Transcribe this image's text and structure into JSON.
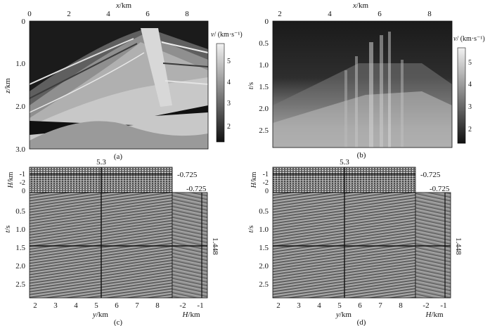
{
  "panel_a": {
    "caption": "(a)",
    "x_label_var": "x",
    "x_label_unit": "/km",
    "y_label_var": "z",
    "y_label_unit": "/km",
    "x_ticks": [
      "0",
      "2",
      "4",
      "6",
      "8"
    ],
    "y_ticks": [
      "0",
      "1.0",
      "2.0",
      "3.0"
    ],
    "colorbar_label_var": "v",
    "colorbar_label_unit": "/ (km·s⁻¹)",
    "colorbar_ticks": [
      "5",
      "4",
      "3",
      "2"
    ]
  },
  "panel_b": {
    "caption": "(b)",
    "x_label_var": "x",
    "x_label_unit": "/km",
    "y_label_var": "t",
    "y_label_unit": "/s",
    "x_ticks": [
      "2",
      "4",
      "6",
      "8"
    ],
    "y_ticks": [
      "0",
      "0.5",
      "1.0",
      "1.5",
      "2.0",
      "2.5"
    ],
    "colorbar_label_var": "v",
    "colorbar_label_unit": "/ (km·s⁻¹)",
    "colorbar_ticks": [
      "5",
      "4",
      "3",
      "2"
    ]
  },
  "panel_c": {
    "caption": "(c)",
    "slice_top_label": "5.3",
    "slice_right_label_top": "-0.725",
    "slice_right_label_lower": "-0.725",
    "slice_time_label": "1.448",
    "h_label_var": "H",
    "h_label_unit": "/km",
    "h_ticks": [
      "-1",
      "-2",
      "0"
    ],
    "t_label_var": "t",
    "t_label_unit": "/s",
    "t_ticks": [
      "0.5",
      "1.0",
      "1.5",
      "2.0",
      "2.5"
    ],
    "y_label_var": "y",
    "y_label_unit": "/km",
    "y_ticks": [
      "2",
      "3",
      "4",
      "5",
      "6",
      "7",
      "8"
    ],
    "hx_label_var": "H",
    "hx_label_unit": "/km",
    "hx_ticks": [
      "-2",
      "-1"
    ]
  },
  "panel_d": {
    "caption": "(d)",
    "slice_top_label": "5.3",
    "slice_right_label_top": "-0.725",
    "slice_right_label_lower": "-0.725",
    "slice_time_label": "1.448",
    "h_label_var": "H",
    "h_label_unit": "/km",
    "h_ticks": [
      "-1",
      "-2",
      "0"
    ],
    "t_label_var": "t",
    "t_label_unit": "/s",
    "t_ticks": [
      "0.5",
      "1.0",
      "1.5",
      "2.0",
      "2.5"
    ],
    "y_label_var": "y",
    "y_label_unit": "/km",
    "y_ticks": [
      "2",
      "3",
      "4",
      "5",
      "6",
      "7",
      "8"
    ],
    "hx_label_var": "H",
    "hx_label_unit": "/km",
    "hx_ticks": [
      "-2",
      "-1"
    ]
  }
}
